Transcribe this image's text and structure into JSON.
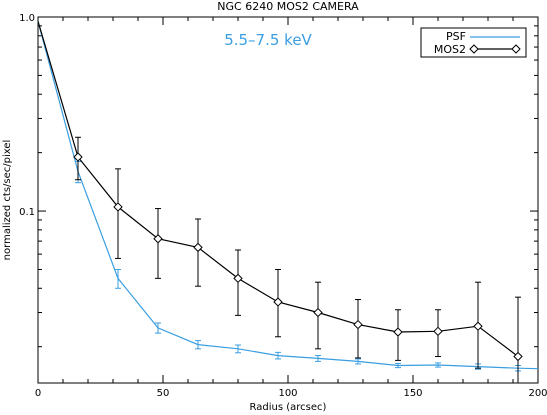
{
  "chart_data": {
    "type": "line",
    "title": "NGC 6240 MOS2 CAMERA",
    "annotation": "5.5–7.5 keV",
    "xlabel": "Radius (arcsec)",
    "ylabel": "normalized cts/sec/pixel",
    "xlim": [
      0,
      200
    ],
    "ylim": [
      0.013,
      1.0
    ],
    "yscale": "log",
    "grid": false,
    "legend_position": "top-right",
    "x_ticks": [
      0,
      50,
      100,
      150,
      200
    ],
    "x_tick_labels": [
      "0",
      "50",
      "100",
      "150",
      "200"
    ],
    "y_ticks": [
      1.0,
      0.1
    ],
    "y_tick_labels": [
      "1.0",
      "0.1"
    ],
    "colors": {
      "psf": "#3a9ee0",
      "mos2": "#000000",
      "annotation": "#3a9ee0"
    },
    "series": [
      {
        "name": "PSF",
        "color": "#3a9ee0",
        "marker": "none",
        "x": [
          0,
          16,
          32,
          48,
          64,
          80,
          96,
          112,
          128,
          144,
          160,
          176,
          192,
          200
        ],
        "y": [
          0.95,
          0.16,
          0.045,
          0.025,
          0.0205,
          0.0195,
          0.018,
          0.0174,
          0.0168,
          0.016,
          0.0161,
          0.0158,
          0.0155,
          0.0154
        ],
        "yerr_low": [
          null,
          0.14,
          0.04,
          0.0235,
          0.0195,
          0.0186,
          0.0173,
          0.0168,
          0.0163,
          0.0156,
          0.0157,
          0.0153,
          0.015,
          null
        ],
        "yerr_high": [
          null,
          0.18,
          0.05,
          0.0265,
          0.0215,
          0.0204,
          0.0187,
          0.018,
          0.0173,
          0.0164,
          0.0165,
          0.0163,
          0.016,
          null
        ]
      },
      {
        "name": "MOS2",
        "color": "#000000",
        "marker": "diamond",
        "x": [
          0,
          16,
          32,
          48,
          64,
          80,
          96,
          112,
          128,
          144,
          160,
          176,
          192
        ],
        "y": [
          0.95,
          0.19,
          0.105,
          0.072,
          0.065,
          0.045,
          0.034,
          0.03,
          0.026,
          0.0238,
          0.024,
          0.0255,
          0.0178
        ],
        "yerr_low": [
          null,
          0.145,
          0.057,
          0.045,
          0.041,
          0.029,
          0.0225,
          0.0195,
          0.0175,
          0.017,
          0.0178,
          0.0155,
          0.013
        ],
        "yerr_high": [
          null,
          0.24,
          0.165,
          0.103,
          0.091,
          0.063,
          0.05,
          0.043,
          0.035,
          0.031,
          0.031,
          0.043,
          0.036
        ]
      }
    ]
  }
}
